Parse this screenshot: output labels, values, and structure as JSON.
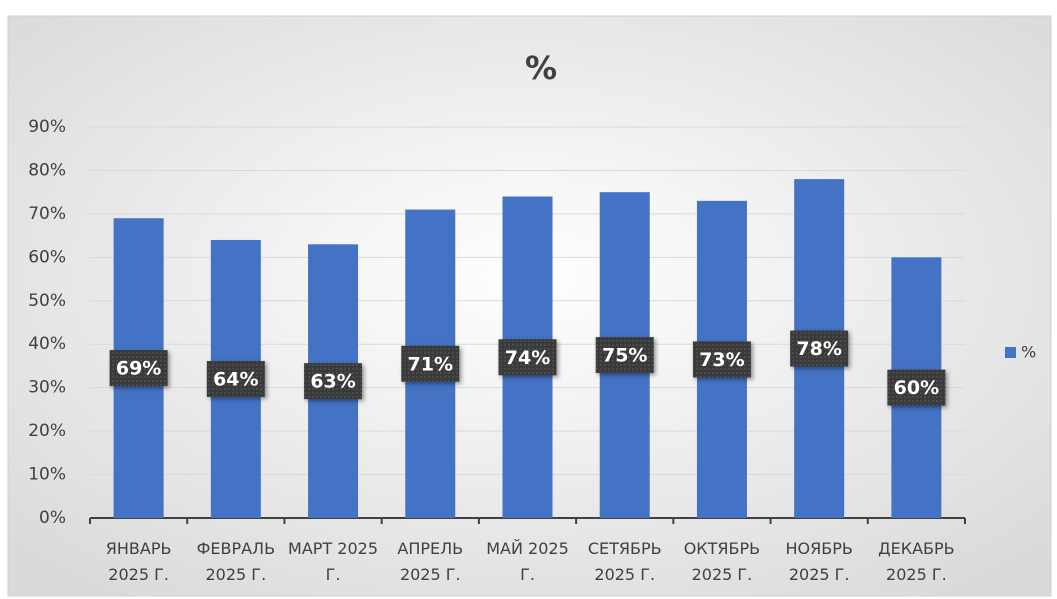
{
  "chart_data": {
    "type": "bar",
    "title": "%",
    "categories": [
      "ЯНВАРЬ 2025 Г.",
      "ФЕВРАЛЬ 2025 Г.",
      "МАРТ 2025 Г.",
      "АПРЕЛЬ 2025 Г.",
      "МАЙ 2025 Г.",
      "СЕТЯБРЬ 2025 Г.",
      "ОКТЯБРЬ 2025 Г.",
      "НОЯБРЬ 2025 Г.",
      "ДЕКАБРЬ 2025 Г."
    ],
    "series": [
      {
        "name": "%",
        "color": "#4472c4",
        "values": [
          69,
          64,
          63,
          71,
          74,
          75,
          73,
          78,
          60
        ],
        "value_labels": [
          "69%",
          "64%",
          "63%",
          "71%",
          "74%",
          "75%",
          "73%",
          "78%",
          "60%"
        ]
      }
    ],
    "ylim": [
      0,
      90
    ],
    "yticks": [
      {
        "value": 0,
        "label": "0%"
      },
      {
        "value": 10,
        "label": "10%"
      },
      {
        "value": 20,
        "label": "20%"
      },
      {
        "value": 30,
        "label": "30%"
      },
      {
        "value": 40,
        "label": "40%"
      },
      {
        "value": 50,
        "label": "50%"
      },
      {
        "value": 60,
        "label": "60%"
      },
      {
        "value": 70,
        "label": "70%"
      },
      {
        "value": 80,
        "label": "80%"
      },
      {
        "value": 90,
        "label": "90%"
      }
    ],
    "grid": true,
    "legend": "right"
  }
}
